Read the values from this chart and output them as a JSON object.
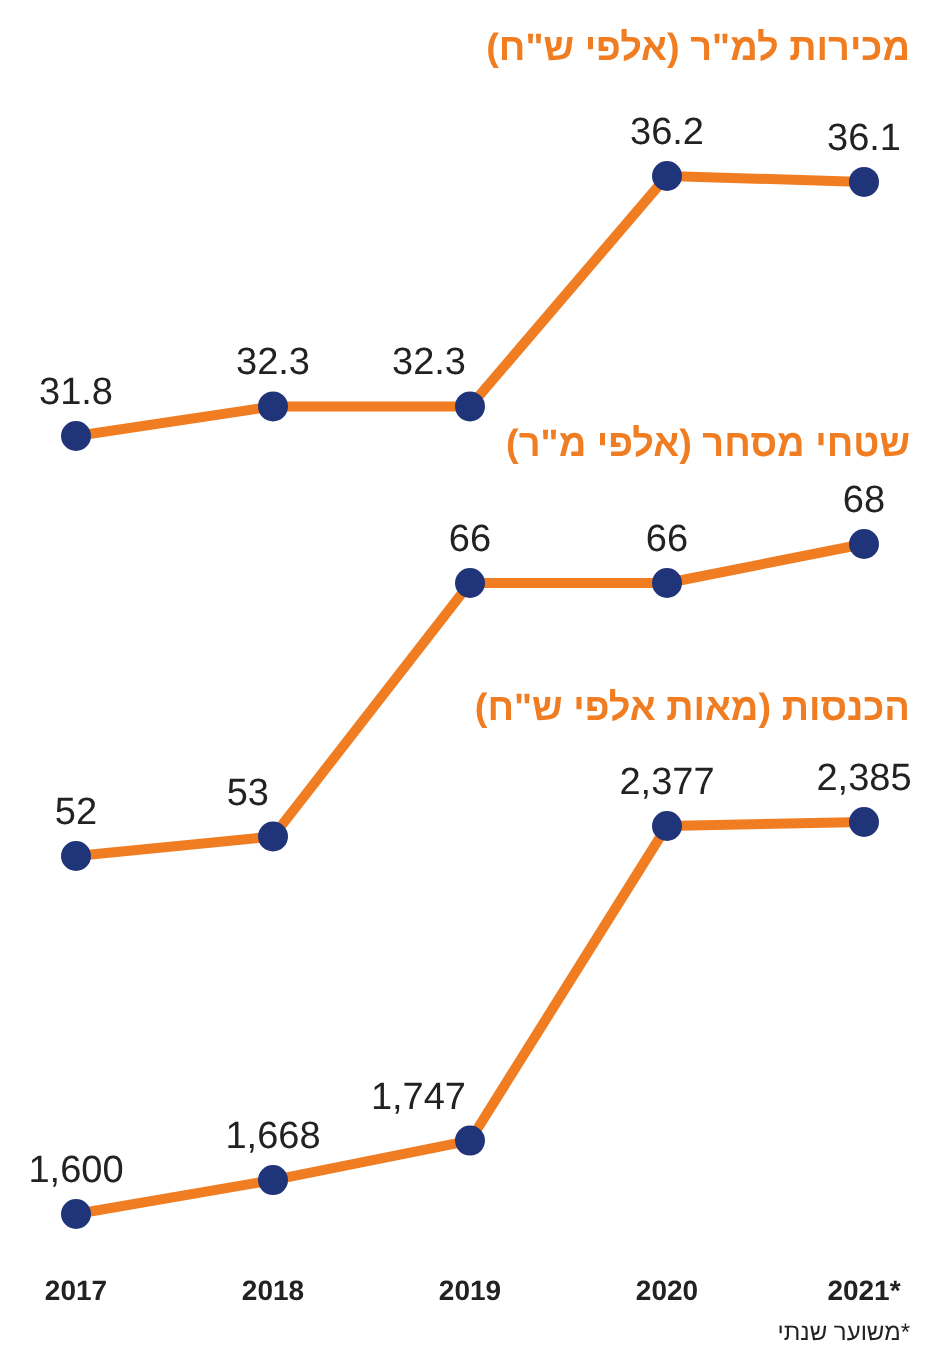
{
  "chart_data": [
    {
      "type": "line",
      "title": "מכירות למ\"ר (אלפי ש\"ח)",
      "categories": [
        null,
        null,
        null,
        null,
        null
      ],
      "marker": "circle",
      "series": [
        {
          "color": "#f07d22",
          "colors": [
            "#1f3479",
            "#1f3479",
            "#1f3479",
            "#1f3479",
            "#1f3479"
          ],
          "values": [
            31.8,
            32.3,
            32.3,
            36.2,
            36.1
          ],
          "value_labels": [
            "31.8",
            "32.3",
            "32.3",
            "36.2",
            "36.1"
          ]
        }
      ]
    },
    {
      "type": "line",
      "title": "שטחי מסחר (אלפי מ\"ר)",
      "categories": [
        null,
        null,
        null,
        null,
        null
      ],
      "marker": "circle",
      "series": [
        {
          "color": "#f07d22",
          "colors": [
            "#1f3479",
            "#1f3479",
            "#1f3479",
            "#1f3479",
            "#1f3479"
          ],
          "values": [
            52,
            53,
            66,
            66,
            68
          ],
          "value_labels": [
            "52",
            "53",
            "66",
            "66",
            "68"
          ]
        }
      ]
    },
    {
      "type": "line",
      "title": "הכנסות (מאות אלפי ש\"ח)",
      "categories": [
        "2017",
        "2018",
        "2019",
        "2020",
        "2021*"
      ],
      "marker": "circle",
      "annotations": [
        "*משוער שנתי"
      ],
      "series": [
        {
          "color": "#f07d22",
          "colors": [
            "#1f3479",
            "#1f3479",
            "#1f3479",
            "#1f3479",
            "#1f3479"
          ],
          "values": [
            1600,
            1668,
            1747,
            2377,
            2385
          ],
          "value_labels": [
            "1,600",
            "1,668",
            "1,747",
            "2,377",
            "2,385"
          ]
        }
      ]
    }
  ]
}
